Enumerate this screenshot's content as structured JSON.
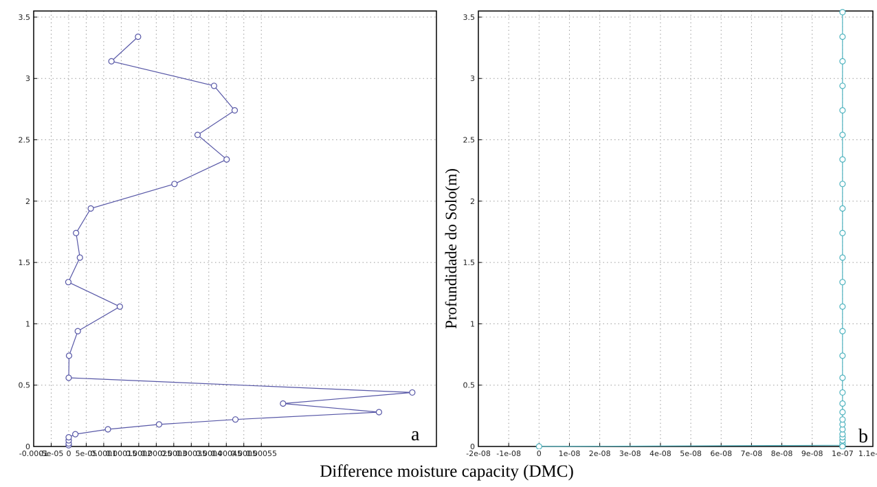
{
  "figure": {
    "xlabel": "Difference moisture capacity  (DMC)",
    "ylabel": "Profundidade do Solo(m)"
  },
  "chart_data": [
    {
      "type": "line",
      "panel": "a",
      "line_color": "#5656a6",
      "ylim": [
        0,
        3.55
      ],
      "xlim": [
        -0.0001,
        0.00105
      ],
      "x_tick_labels": [
        "-0.0001",
        "-5e-05",
        "0",
        "5e-05",
        "0.0001",
        "0.00015",
        "0.0002",
        "0.00025",
        "0.0003",
        "0.00035",
        "0.0004",
        "0.00045",
        "0.0005",
        "0.00055"
      ],
      "x_tick_values": [
        -0.0001,
        -5e-05,
        0,
        5e-05,
        0.0001,
        0.00015,
        0.0002,
        0.00025,
        0.0003,
        0.00035,
        0.0004,
        0.00045,
        0.0005,
        0.00055
      ],
      "y_tick_labels": [
        "0",
        "0.5",
        "1",
        "1.5",
        "2",
        "2.5",
        "3",
        "3.5"
      ],
      "y_tick_values": [
        0,
        0.5,
        1,
        1.5,
        2,
        2.5,
        3,
        3.5
      ],
      "x": [
        0.0,
        0.0,
        0.0,
        0.0,
        1.9e-05,
        0.000112,
        0.000258,
        0.000476,
        0.000886,
        0.000612,
        0.000981,
        0.0,
        1e-06,
        2.6e-05,
        0.000146,
        -1e-06,
        3.2e-05,
        2.1e-05,
        6.3e-05,
        0.000302,
        0.000451,
        0.000368,
        0.000474,
        0.000415,
        0.000122,
        0.000198
      ],
      "y": [
        0.01,
        0.025,
        0.05,
        0.075,
        0.1,
        0.14,
        0.18,
        0.22,
        0.28,
        0.35,
        0.44,
        0.56,
        0.74,
        0.94,
        1.14,
        1.34,
        1.54,
        1.74,
        1.94,
        2.14,
        2.34,
        2.54,
        2.74,
        2.94,
        3.14,
        3.34
      ]
    },
    {
      "type": "line",
      "panel": "b",
      "line_color": "#4fb3bf",
      "ylim": [
        0,
        3.55
      ],
      "xlim": [
        -2e-08,
        1.1e-07
      ],
      "x_tick_labels": [
        "-2e-08",
        "-1e-08",
        "0",
        "1e-08",
        "2e-08",
        "3e-08",
        "4e-08",
        "5e-08",
        "6e-08",
        "7e-08",
        "8e-08",
        "9e-08",
        "1e-07",
        "1.1e-07"
      ],
      "x_tick_values": [
        -2e-08,
        -1e-08,
        0,
        1e-08,
        2e-08,
        3e-08,
        4e-08,
        5e-08,
        6e-08,
        7e-08,
        8e-08,
        9e-08,
        1e-07,
        1.1e-07
      ],
      "y_tick_labels": [
        "0",
        "0.5",
        "1",
        "1.5",
        "2",
        "2.5",
        "3",
        "3.5"
      ],
      "y_tick_values": [
        0,
        0.5,
        1,
        1.5,
        2,
        2.5,
        3,
        3.5
      ],
      "x": [
        0,
        1e-07,
        1e-07,
        1e-07,
        1e-07,
        1e-07,
        1e-07,
        1e-07,
        1e-07,
        1e-07,
        1e-07,
        1e-07,
        1e-07,
        1e-07,
        1e-07,
        1e-07,
        1e-07,
        1e-07,
        1e-07,
        1e-07,
        1e-07,
        1e-07,
        1e-07,
        1e-07,
        1e-07,
        1e-07,
        1e-07,
        1e-07,
        1e-07,
        1e-07
      ],
      "y": [
        0.0,
        0.01,
        0.025,
        0.05,
        0.075,
        0.1,
        0.14,
        0.18,
        0.22,
        0.28,
        0.35,
        0.44,
        0.56,
        0.74,
        0.94,
        1.14,
        1.34,
        1.54,
        1.74,
        1.94,
        2.14,
        2.34,
        2.54,
        2.74,
        2.94,
        3.14,
        3.34,
        3.54,
        0.0,
        0.0
      ]
    }
  ]
}
